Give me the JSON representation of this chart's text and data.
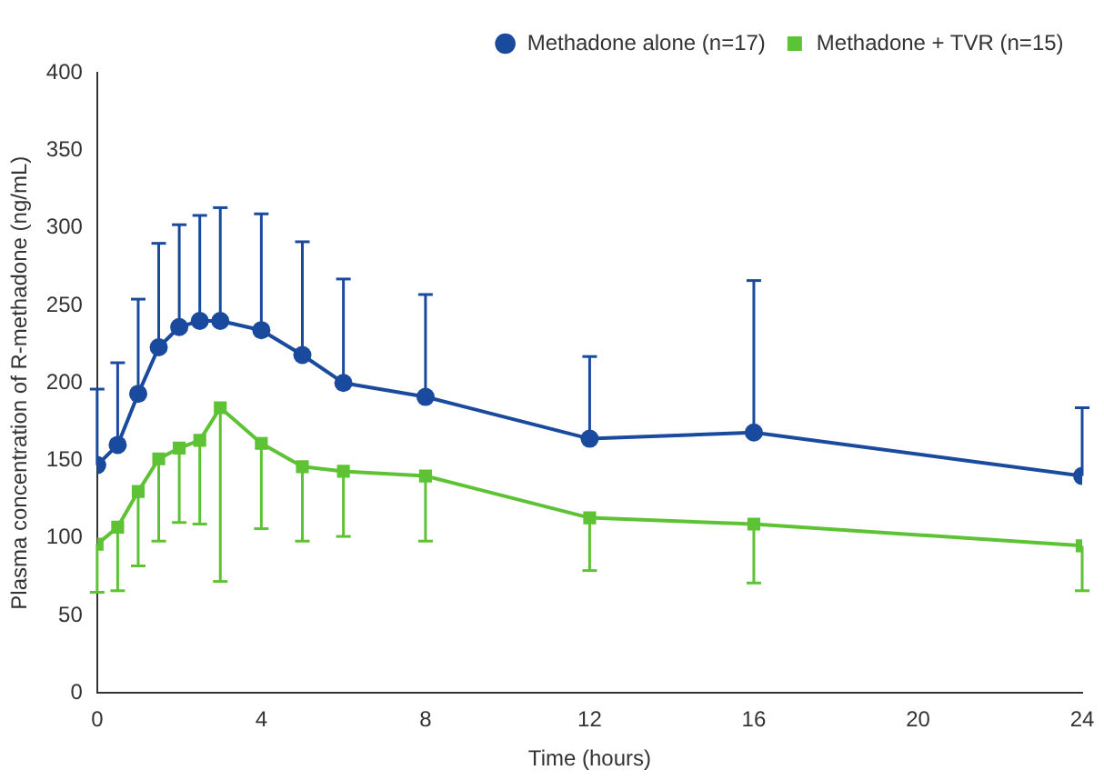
{
  "chart_data": {
    "type": "line",
    "xlabel": "Time (hours)",
    "ylabel": "Plasma concentration of R-methadone (ng/mL)",
    "x": [
      0,
      0.5,
      1,
      1.5,
      2,
      2.5,
      3,
      4,
      5,
      6,
      8,
      12,
      16,
      24
    ],
    "xlim": [
      0,
      24
    ],
    "xticks": [
      0,
      4,
      8,
      12,
      16,
      20,
      24
    ],
    "ylim": [
      0,
      400
    ],
    "yticks": [
      0,
      50,
      100,
      150,
      200,
      250,
      300,
      350,
      400
    ],
    "grid": false,
    "legend": "top right",
    "line_style": "solid",
    "series": [
      {
        "name": "Methadone alone (n=17)",
        "color": "#1a4a9e",
        "marker": "circle",
        "values": [
          147,
          160,
          193,
          223,
          236,
          240,
          240,
          234,
          218,
          200,
          191,
          164,
          168,
          140
        ],
        "errors": [
          [
            147,
            196
          ],
          [
            160,
            213
          ],
          [
            193,
            254
          ],
          [
            223,
            290
          ],
          [
            236,
            302
          ],
          [
            240,
            308
          ],
          [
            240,
            313
          ],
          [
            234,
            309
          ],
          [
            218,
            291
          ],
          [
            200,
            267
          ],
          [
            191,
            257
          ],
          [
            164,
            217
          ],
          [
            168,
            266
          ],
          [
            140,
            184
          ]
        ]
      },
      {
        "name": "Methadone + TVR (n=15)",
        "color": "#5ec235",
        "marker": "square",
        "values": [
          96,
          107,
          130,
          151,
          158,
          163,
          184,
          161,
          146,
          143,
          140,
          113,
          109,
          95
        ],
        "errors": [
          [
            65,
            96
          ],
          [
            66,
            107
          ],
          [
            82,
            130
          ],
          [
            98,
            151
          ],
          [
            110,
            158
          ],
          [
            109,
            163
          ],
          [
            72,
            184
          ],
          [
            106,
            161
          ],
          [
            98,
            146
          ],
          [
            101,
            143
          ],
          [
            98,
            140
          ],
          [
            79,
            113
          ],
          [
            71,
            109
          ],
          [
            66,
            95
          ]
        ]
      }
    ]
  }
}
